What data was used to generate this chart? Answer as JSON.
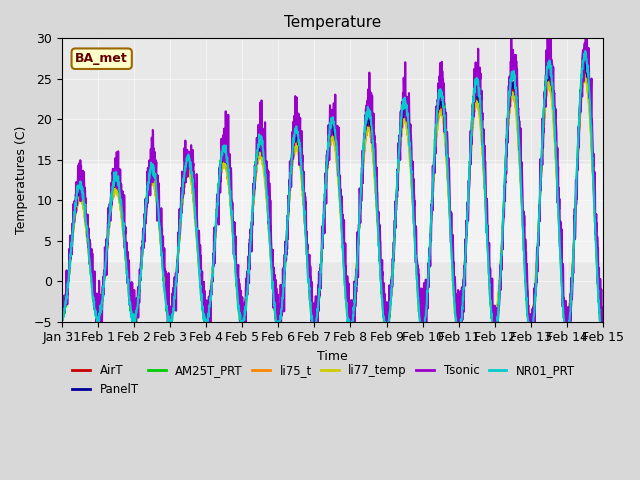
{
  "title": "Temperature",
  "xlabel": "Time",
  "ylabel": "Temperatures (C)",
  "ylim": [
    -5,
    30
  ],
  "annotation_text": "BA_met",
  "bg_color": "#d8d8d8",
  "plot_bg": "#e8e8e8",
  "series": {
    "AirT": {
      "color": "#cc0000",
      "lw": 1.2
    },
    "PanelT": {
      "color": "#000099",
      "lw": 1.2
    },
    "AM25T_PRT": {
      "color": "#00cc00",
      "lw": 1.5
    },
    "li75_t": {
      "color": "#ff8800",
      "lw": 1.2
    },
    "li77_temp": {
      "color": "#cccc00",
      "lw": 1.2
    },
    "Tsonic": {
      "color": "#9900cc",
      "lw": 1.5
    },
    "NR01_PRT": {
      "color": "#00cccc",
      "lw": 1.5
    }
  },
  "tick_labels": [
    "Jan 31",
    "Feb 1",
    "Feb 2",
    "Feb 3",
    "Feb 4",
    "Feb 5",
    "Feb 6",
    "Feb 7",
    "Feb 8",
    "Feb 9",
    "Feb 10",
    "Feb 11",
    "Feb 12",
    "Feb 13",
    "Feb 14",
    "Feb 15"
  ],
  "yticks": [
    -5,
    0,
    5,
    10,
    15,
    20,
    25,
    30
  ],
  "shaded_band": [
    2.5,
    14.5
  ],
  "font_size": 9
}
